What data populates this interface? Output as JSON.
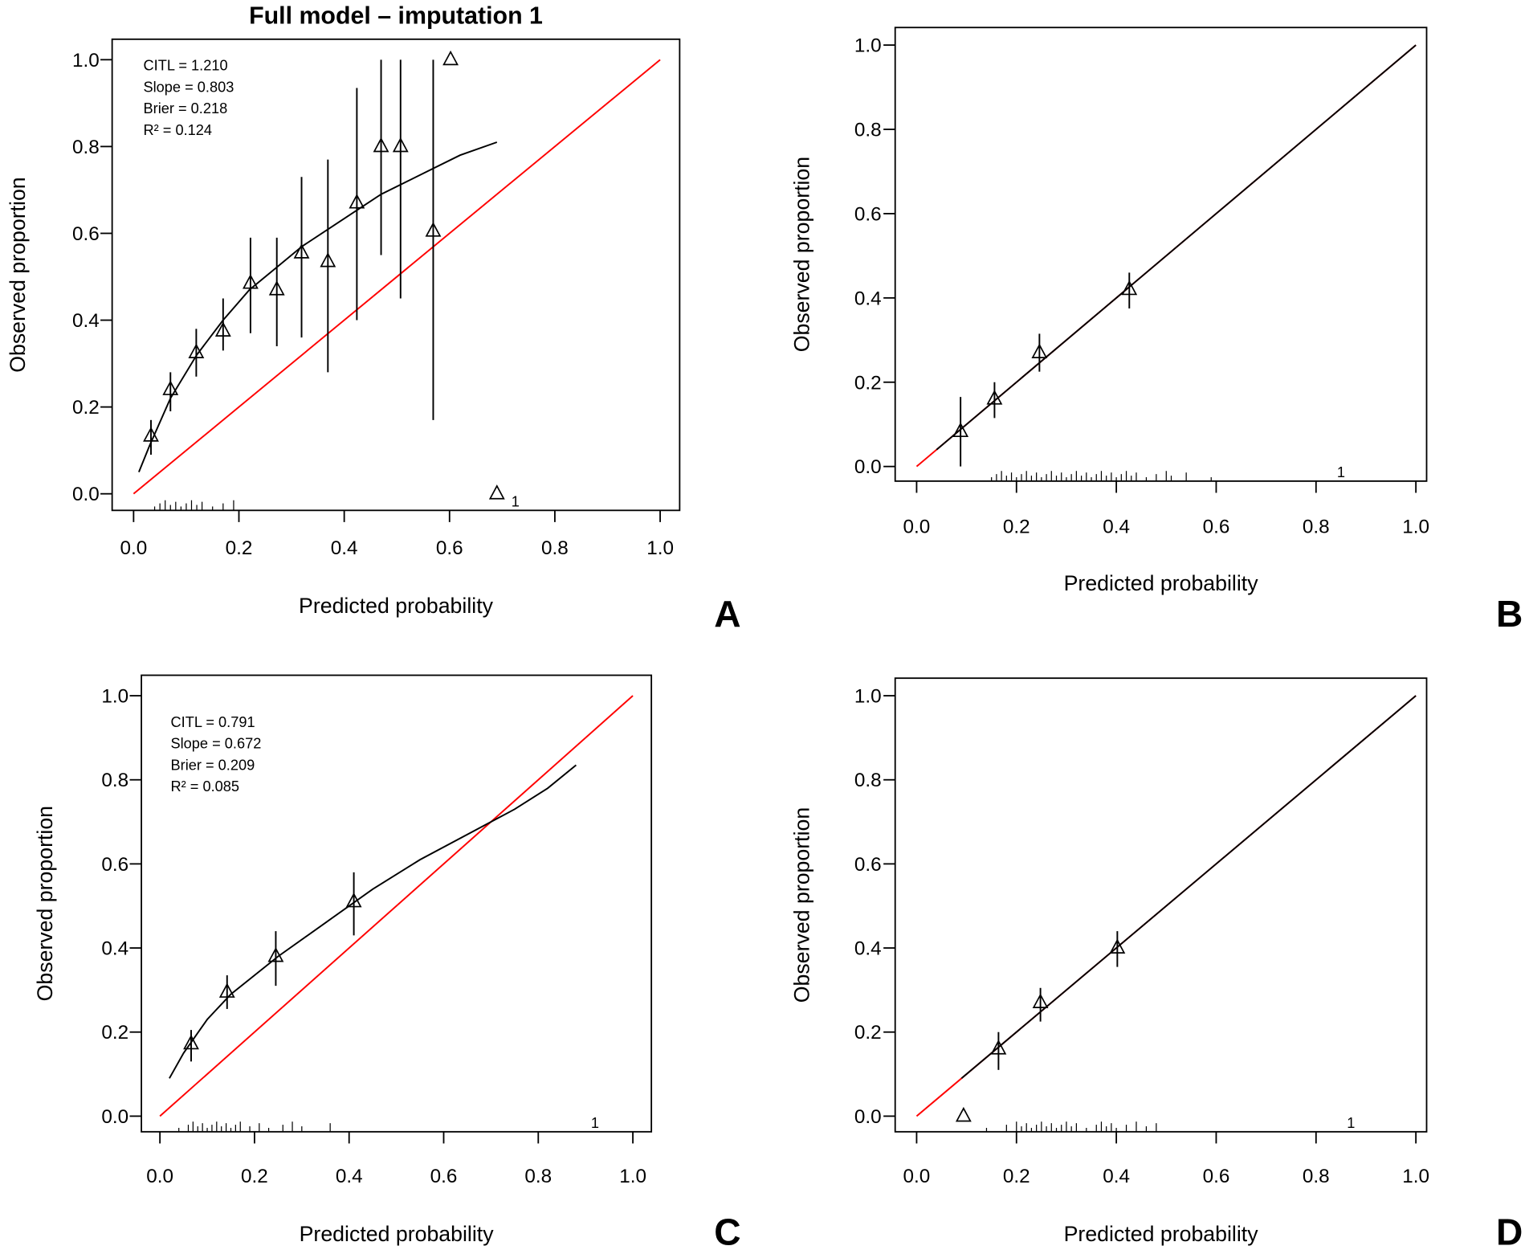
{
  "chart_data": [
    {
      "type": "scatter",
      "panel_letter": "A",
      "title": "Full model – imputation 1",
      "xlabel": "Predicted probability",
      "ylabel": "Observed proportion",
      "xlim": [
        0,
        1
      ],
      "ylim": [
        0,
        1
      ],
      "xticks": [
        "0.0",
        "0.2",
        "0.4",
        "0.6",
        "0.8",
        "1.0"
      ],
      "yticks": [
        "0.0",
        "0.2",
        "0.4",
        "0.6",
        "0.8",
        "1.0"
      ],
      "stats": [
        "CITL = 1.210",
        "Slope = 0.803",
        "Brier = 0.218",
        "R² = 0.124"
      ],
      "points": [
        {
          "x": 0.033,
          "y": 0.133,
          "lo": 0.09,
          "hi": 0.17
        },
        {
          "x": 0.07,
          "y": 0.24,
          "lo": 0.19,
          "hi": 0.28
        },
        {
          "x": 0.119,
          "y": 0.325,
          "lo": 0.27,
          "hi": 0.38
        },
        {
          "x": 0.17,
          "y": 0.375,
          "lo": 0.33,
          "hi": 0.45
        },
        {
          "x": 0.222,
          "y": 0.485,
          "lo": 0.37,
          "hi": 0.59
        },
        {
          "x": 0.272,
          "y": 0.47,
          "lo": 0.34,
          "hi": 0.59
        },
        {
          "x": 0.319,
          "y": 0.555,
          "lo": 0.36,
          "hi": 0.73
        },
        {
          "x": 0.369,
          "y": 0.535,
          "lo": 0.28,
          "hi": 0.77
        },
        {
          "x": 0.424,
          "y": 0.67,
          "lo": 0.4,
          "hi": 0.935
        },
        {
          "x": 0.47,
          "y": 0.8,
          "lo": 0.55,
          "hi": 1.0
        },
        {
          "x": 0.507,
          "y": 0.8,
          "lo": 0.45,
          "hi": 1.0
        },
        {
          "x": 0.569,
          "y": 0.605,
          "lo": 0.17,
          "hi": 1.0
        },
        {
          "x": 0.602,
          "y": 1.0
        },
        {
          "x": 0.69,
          "y": 0.0
        }
      ],
      "curve": [
        [
          0.01,
          0.05
        ],
        [
          0.03,
          0.11
        ],
        [
          0.07,
          0.22
        ],
        [
          0.12,
          0.32
        ],
        [
          0.17,
          0.4
        ],
        [
          0.22,
          0.47
        ],
        [
          0.27,
          0.52
        ],
        [
          0.32,
          0.57
        ],
        [
          0.37,
          0.61
        ],
        [
          0.42,
          0.65
        ],
        [
          0.47,
          0.69
        ],
        [
          0.52,
          0.72
        ],
        [
          0.57,
          0.75
        ],
        [
          0.62,
          0.78
        ],
        [
          0.69,
          0.81
        ]
      ],
      "reference_line": [
        [
          0,
          0
        ],
        [
          1,
          1
        ]
      ],
      "rug": [
        0.04,
        0.05,
        0.06,
        0.07,
        0.08,
        0.09,
        0.1,
        0.11,
        0.12,
        0.13,
        0.15,
        0.17,
        0.19
      ],
      "rug_label": {
        "text": "1",
        "x": 0.725
      },
      "colors": {
        "reference": "#ff0000",
        "curve": "#000000"
      }
    },
    {
      "type": "scatter",
      "panel_letter": "B",
      "xlabel": "Predicted probability",
      "ylabel": "Observed proportion",
      "xlim": [
        0,
        1
      ],
      "ylim": [
        0,
        1
      ],
      "xticks": [
        "0.0",
        "0.2",
        "0.4",
        "0.6",
        "0.8",
        "1.0"
      ],
      "yticks": [
        "0.0",
        "0.2",
        "0.4",
        "0.6",
        "0.8",
        "1.0"
      ],
      "points": [
        {
          "x": 0.088,
          "y": 0.083,
          "lo": 0.0,
          "hi": 0.165
        },
        {
          "x": 0.156,
          "y": 0.16,
          "lo": 0.115,
          "hi": 0.2
        },
        {
          "x": 0.246,
          "y": 0.27,
          "lo": 0.225,
          "hi": 0.315
        },
        {
          "x": 0.426,
          "y": 0.42,
          "lo": 0.375,
          "hi": 0.46
        }
      ],
      "curve": [
        [
          0.04,
          0.04
        ],
        [
          1.0,
          1.0
        ]
      ],
      "reference_line": [
        [
          0,
          0
        ],
        [
          1,
          1
        ]
      ],
      "rug": [
        0.15,
        0.16,
        0.17,
        0.18,
        0.19,
        0.2,
        0.21,
        0.22,
        0.23,
        0.24,
        0.25,
        0.26,
        0.27,
        0.28,
        0.29,
        0.3,
        0.31,
        0.32,
        0.33,
        0.34,
        0.35,
        0.36,
        0.37,
        0.38,
        0.39,
        0.4,
        0.41,
        0.42,
        0.43,
        0.44,
        0.46,
        0.48,
        0.5,
        0.51,
        0.54,
        0.59
      ],
      "rug_label": {
        "text": "1",
        "x": 0.85
      },
      "colors": {
        "reference": "#ff0000",
        "curve": "#000000"
      }
    },
    {
      "type": "scatter",
      "panel_letter": "C",
      "xlabel": "Predicted probability",
      "ylabel": "Observed proportion",
      "xlim": [
        0,
        1
      ],
      "ylim": [
        0,
        1
      ],
      "xticks": [
        "0.0",
        "0.2",
        "0.4",
        "0.6",
        "0.8",
        "1.0"
      ],
      "yticks": [
        "0.0",
        "0.2",
        "0.4",
        "0.6",
        "0.8",
        "1.0"
      ],
      "stats": [
        "CITL  = 0.791",
        "Slope = 0.672",
        "Brier = 0.209",
        "R²    = 0.085"
      ],
      "points": [
        {
          "x": 0.066,
          "y": 0.172,
          "lo": 0.13,
          "hi": 0.205
        },
        {
          "x": 0.142,
          "y": 0.295,
          "lo": 0.255,
          "hi": 0.335
        },
        {
          "x": 0.245,
          "y": 0.38,
          "lo": 0.31,
          "hi": 0.44
        },
        {
          "x": 0.41,
          "y": 0.51,
          "lo": 0.43,
          "hi": 0.58
        }
      ],
      "curve": [
        [
          0.02,
          0.09
        ],
        [
          0.05,
          0.15
        ],
        [
          0.1,
          0.23
        ],
        [
          0.15,
          0.29
        ],
        [
          0.25,
          0.38
        ],
        [
          0.35,
          0.46
        ],
        [
          0.45,
          0.54
        ],
        [
          0.55,
          0.61
        ],
        [
          0.65,
          0.67
        ],
        [
          0.75,
          0.73
        ],
        [
          0.82,
          0.78
        ],
        [
          0.88,
          0.835
        ]
      ],
      "reference_line": [
        [
          0,
          0
        ],
        [
          1,
          1
        ]
      ],
      "rug": [
        0.04,
        0.06,
        0.07,
        0.08,
        0.09,
        0.1,
        0.11,
        0.12,
        0.13,
        0.14,
        0.15,
        0.16,
        0.17,
        0.19,
        0.21,
        0.23,
        0.26,
        0.28,
        0.3,
        0.36
      ],
      "rug_label": {
        "text": "1",
        "x": 0.92
      },
      "colors": {
        "reference": "#ff0000",
        "curve": "#000000"
      }
    },
    {
      "type": "scatter",
      "panel_letter": "D",
      "xlabel": "Predicted probability",
      "ylabel": "Observed proportion",
      "xlim": [
        0,
        1
      ],
      "ylim": [
        0,
        1
      ],
      "xticks": [
        "0.0",
        "0.2",
        "0.4",
        "0.6",
        "0.8",
        "1.0"
      ],
      "yticks": [
        "0.0",
        "0.2",
        "0.4",
        "0.6",
        "0.8",
        "1.0"
      ],
      "points": [
        {
          "x": 0.094,
          "y": 0.0
        },
        {
          "x": 0.164,
          "y": 0.16,
          "lo": 0.11,
          "hi": 0.2
        },
        {
          "x": 0.248,
          "y": 0.27,
          "lo": 0.225,
          "hi": 0.305
        },
        {
          "x": 0.402,
          "y": 0.4,
          "lo": 0.355,
          "hi": 0.44
        }
      ],
      "curve": [
        [
          0.09,
          0.09
        ],
        [
          1.0,
          1.0
        ]
      ],
      "reference_line": [
        [
          0,
          0
        ],
        [
          1,
          1
        ]
      ],
      "rug": [
        0.14,
        0.18,
        0.2,
        0.21,
        0.22,
        0.23,
        0.24,
        0.25,
        0.26,
        0.27,
        0.28,
        0.29,
        0.3,
        0.31,
        0.32,
        0.34,
        0.36,
        0.37,
        0.38,
        0.39,
        0.4,
        0.42,
        0.44,
        0.46,
        0.48
      ],
      "rug_label": {
        "text": "1",
        "x": 0.87
      },
      "colors": {
        "reference": "#ff0000",
        "curve": "#000000"
      }
    }
  ]
}
